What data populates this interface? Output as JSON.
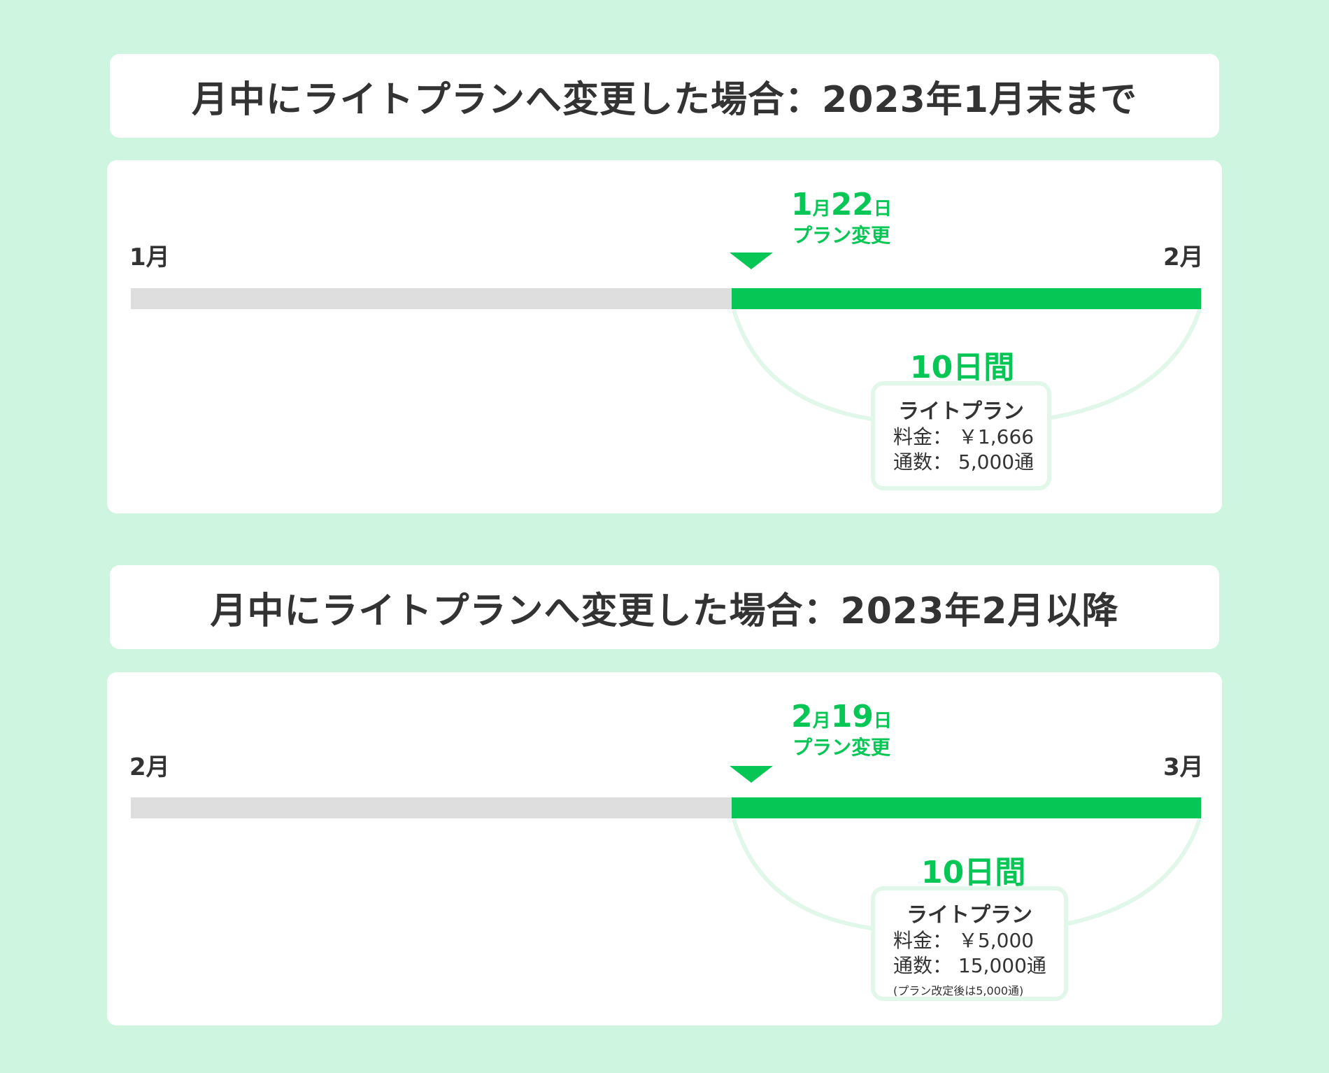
{
  "sections": [
    {
      "title": "月中にライトプランへ変更した場合：2023年1月末まで",
      "start_month": "1月",
      "end_month": "2月",
      "change_month_num": "1",
      "change_month_unit": "月",
      "change_day_num": "22",
      "change_day_unit": "日",
      "change_caption": "プラン変更",
      "duration": "10日間",
      "plan_name": "ライトプラン",
      "fee_label": "料金：",
      "fee_value": "￥1,666",
      "messages_label": "通数：",
      "messages_value": "5,000通",
      "note": ""
    },
    {
      "title": "月中にライトプランへ変更した場合：2023年2月以降",
      "start_month": "2月",
      "end_month": "3月",
      "change_month_num": "2",
      "change_month_unit": "月",
      "change_day_num": "19",
      "change_day_unit": "日",
      "change_caption": "プラン変更",
      "duration": "10日間",
      "plan_name": "ライトプラン",
      "fee_label": "料金：",
      "fee_value": "￥5,000",
      "messages_label": "通数：",
      "messages_value": "15,000通",
      "note": "(プラン改定後は5,000通)"
    }
  ],
  "colors": {
    "background": "#cdf5df",
    "accent_green": "#06c755",
    "inactive_gray": "#dedede",
    "arc_light_green": "#e0f7ea",
    "text_dark": "#333333"
  }
}
